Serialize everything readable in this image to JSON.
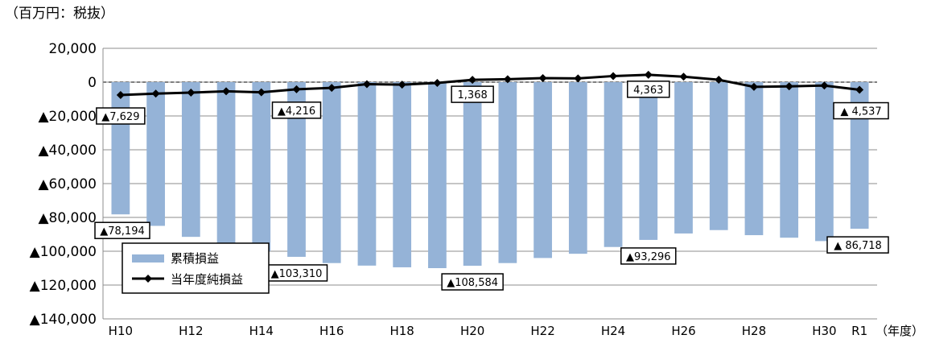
{
  "unit_label": "（百万円：税抜）",
  "chart_data": {
    "type": "bar",
    "categories": [
      "H10",
      "H11",
      "H12",
      "H13",
      "H14",
      "H15",
      "H16",
      "H17",
      "H18",
      "H19",
      "H20",
      "H21",
      "H22",
      "H23",
      "H24",
      "H25",
      "H26",
      "H27",
      "H28",
      "H29",
      "H30",
      "R1"
    ],
    "x_tick_labels": [
      "H10",
      "",
      "H12",
      "",
      "H14",
      "",
      "H16",
      "",
      "H18",
      "",
      "H20",
      "",
      "H22",
      "",
      "H24",
      "",
      "H26",
      "",
      "H28",
      "",
      "H30",
      "R1"
    ],
    "xlabel": "（年度）",
    "ylim": [
      -140000,
      20000
    ],
    "y_ticks": [
      20000,
      0,
      -20000,
      -40000,
      -60000,
      -80000,
      -100000,
      -120000,
      -140000
    ],
    "y_tick_labels": [
      "20,000",
      "0",
      "▲20,000",
      "▲40,000",
      "▲60,000",
      "▲80,000",
      "▲100,000",
      "▲120,000",
      "▲140,000"
    ],
    "grid": true,
    "series": [
      {
        "name": "累積損益",
        "type": "bar",
        "color": "#95b3d7",
        "values": [
          -78194,
          -85000,
          -91500,
          -96500,
          -100000,
          -103310,
          -107000,
          -108500,
          -109500,
          -110000,
          -108584,
          -107000,
          -104000,
          -101500,
          -97500,
          -93296,
          -89500,
          -87500,
          -90500,
          -92000,
          -94000,
          -86718
        ]
      },
      {
        "name": "当年度純損益",
        "type": "line",
        "color": "#000000",
        "values": [
          -7629,
          -6800,
          -6200,
          -5400,
          -6000,
          -4216,
          -3400,
          -1200,
          -1500,
          -500,
          1368,
          1700,
          2400,
          2200,
          3600,
          4363,
          3200,
          1400,
          -2800,
          -2500,
          -2000,
          -4537
        ]
      }
    ],
    "annotations": [
      {
        "series": 1,
        "index": 0,
        "text": "▲7,629"
      },
      {
        "series": 1,
        "index": 5,
        "text": "▲4,216"
      },
      {
        "series": 1,
        "index": 10,
        "text": "1,368"
      },
      {
        "series": 1,
        "index": 15,
        "text": "4,363"
      },
      {
        "series": 1,
        "index": 21,
        "text": "▲ 4,537"
      },
      {
        "series": 0,
        "index": 0,
        "text": "▲78,194"
      },
      {
        "series": 0,
        "index": 5,
        "text": "▲103,310"
      },
      {
        "series": 0,
        "index": 10,
        "text": "▲108,584"
      },
      {
        "series": 0,
        "index": 15,
        "text": "▲93,296"
      },
      {
        "series": 0,
        "index": 21,
        "text": "▲ 86,718"
      }
    ],
    "legend_position": "lower-left"
  }
}
